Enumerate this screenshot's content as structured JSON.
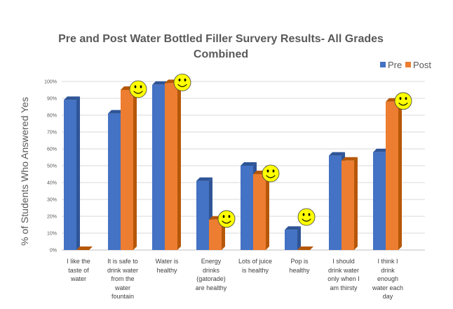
{
  "chart_data": {
    "type": "bar",
    "title_lines": [
      "Pre and Post Water Bottled Filler Survery Results- All Grades",
      "Combined"
    ],
    "ylabel": "% of Students Who Answered Yes",
    "xlabel": "",
    "ylim": [
      0,
      100
    ],
    "yticks": [
      "0%",
      "10%",
      "20%",
      "30%",
      "40%",
      "50%",
      "60%",
      "70%",
      "80%",
      "90%",
      "100%"
    ],
    "grid": true,
    "legend_position": "top-right",
    "categories": [
      "I like the taste of water",
      "It is safe to drink water from the water fountain",
      "Water is healthy",
      "Energy drinks (gatorade) are healthy",
      "Lots of juice is healthy",
      "Pop is healthy",
      "I should drink water only when I am thirsty",
      "I think I drink enough water each day"
    ],
    "category_lines": [
      [
        "I like the",
        "taste of",
        "water"
      ],
      [
        "It is safe to",
        "drink water",
        "from the",
        "water",
        "fountain"
      ],
      [
        "Water is",
        "healthy"
      ],
      [
        "Energy",
        "drinks",
        "(gatorade)",
        "are healthy"
      ],
      [
        "Lots of juice",
        "is healthy"
      ],
      [
        "Pop is",
        "healthy"
      ],
      [
        "I should",
        "drink water",
        "only when I",
        "am thirsty"
      ],
      [
        "I think I",
        "drink",
        "enough",
        "water each",
        "day"
      ]
    ],
    "series": [
      {
        "name": "Pre",
        "color": "#4472c4",
        "shade": "#2f5597",
        "values": [
          89,
          81,
          98,
          41,
          50,
          12,
          56,
          58
        ]
      },
      {
        "name": "Post",
        "color": "#ed7d31",
        "shade": "#b65708",
        "values": [
          0,
          95,
          99,
          18,
          45,
          0,
          53,
          88
        ]
      }
    ],
    "annotations": {
      "icon": "smiley-face-icon",
      "on_post_bars_of_categories": [
        1,
        2,
        3,
        4,
        5,
        7
      ]
    }
  }
}
